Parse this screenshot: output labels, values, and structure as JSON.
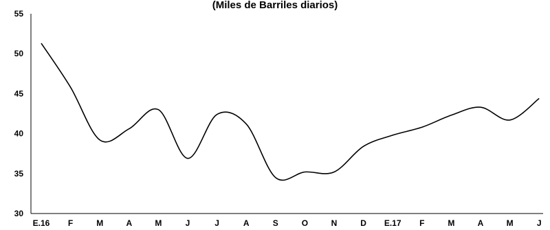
{
  "chart_data": {
    "type": "line",
    "title": "(Miles de Barriles diarios)",
    "xlabel": "",
    "ylabel": "",
    "categories": [
      "E.16",
      "F",
      "M",
      "A",
      "M",
      "J",
      "J",
      "A",
      "S",
      "O",
      "N",
      "D",
      "E.17",
      "F",
      "M",
      "A",
      "M",
      "J"
    ],
    "series": [
      {
        "values": [
          51.3,
          45.8,
          39.2,
          40.6,
          43.0,
          36.9,
          42.4,
          41.2,
          34.5,
          35.2,
          35.2,
          38.4,
          39.8,
          40.8,
          42.3,
          43.3,
          41.7,
          44.4
        ]
      }
    ],
    "ylim": [
      30,
      55
    ],
    "yticks": [
      30,
      35,
      40,
      45,
      50,
      55
    ],
    "grid": false,
    "legend": "none"
  }
}
